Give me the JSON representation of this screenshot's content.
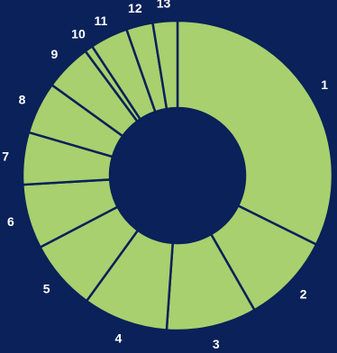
{
  "chart_data": {
    "type": "pie",
    "variant": "donut",
    "categories": [
      "1",
      "2",
      "3",
      "4",
      "5",
      "6",
      "7",
      "8",
      "9",
      "10",
      "11",
      "12",
      "13"
    ],
    "values": [
      30.3,
      8.8,
      8.8,
      8.3,
      6.9,
      6.3,
      5.1,
      5.1,
      4.6,
      0.8,
      3.7,
      2.6,
      2.4
    ],
    "colors": {
      "slice": "#a8d06e",
      "border": "#0a2159",
      "background": "#0a2159",
      "label": "#ffffff"
    }
  }
}
